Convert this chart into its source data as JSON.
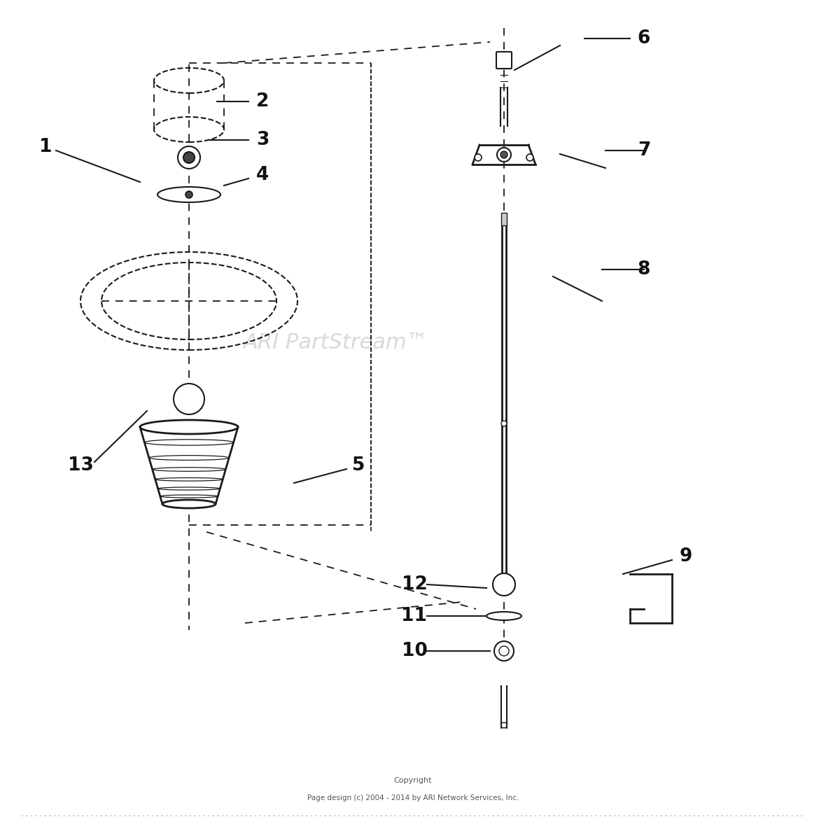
{
  "bg_color": "#ffffff",
  "line_color": "#1a1a1a",
  "label_color": "#111111",
  "watermark_color": "#c0c0c0",
  "copyright_color": "#555555",
  "border_color": "#333333",
  "fig_width": 11.8,
  "fig_height": 11.8,
  "dpi": 100,
  "watermark": "ARI PartStream™",
  "copyright_line1": "Copyright",
  "copyright_line2": "Page design (c) 2004 - 2014 by ARI Network Services, Inc."
}
